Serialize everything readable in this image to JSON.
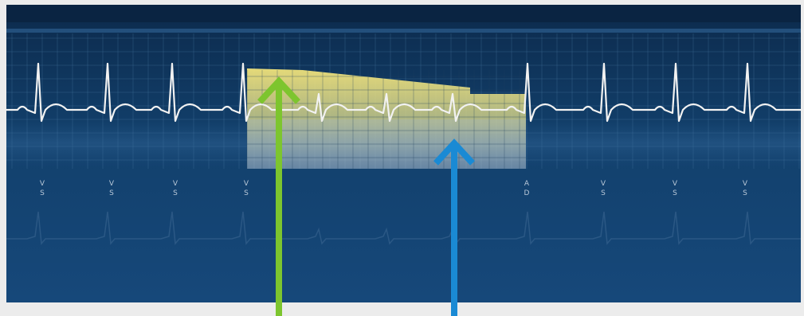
{
  "colors": {
    "page_bg": "#ececec",
    "monitor_top": "#0c2a4c",
    "monitor_bottom": "#16487a",
    "grid": "#4f7fa8",
    "ecg_trace": "#f2f2f2",
    "highlight_fill": "#e8d96a",
    "green_arrow": "#7dc52e",
    "blue_arrow": "#1a8ad4",
    "marker_text": "#b9c8d8"
  },
  "beat_markers": [
    {
      "top": "V",
      "bottom": "S"
    },
    {
      "top": "V",
      "bottom": "S"
    },
    {
      "top": "V",
      "bottom": "S"
    },
    {
      "top": "V",
      "bottom": "S"
    },
    {
      "top": "A",
      "bottom": "D"
    },
    {
      "top": "V",
      "bottom": "S"
    },
    {
      "top": "V",
      "bottom": "S"
    },
    {
      "top": "V",
      "bottom": "S"
    }
  ],
  "icons": {
    "green_arrow": "arrow-up-icon",
    "blue_arrow": "arrow-up-icon"
  }
}
